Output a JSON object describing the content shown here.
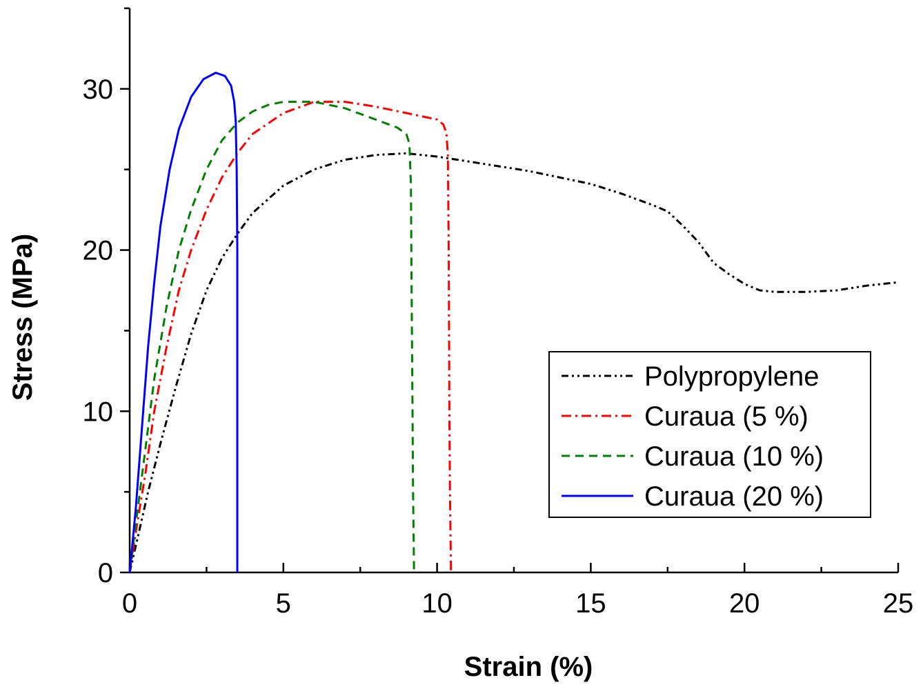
{
  "chart_data": {
    "type": "line",
    "title": "",
    "xlabel": "Strain (%)",
    "ylabel": "Stress (MPa)",
    "xlim": [
      0,
      25
    ],
    "ylim": [
      0,
      35
    ],
    "x_ticks": [
      "0",
      "5",
      "10",
      "15",
      "20",
      "25"
    ],
    "y_ticks": [
      "0",
      "10",
      "20",
      "30"
    ],
    "grid": false,
    "legend_position": "center-right",
    "series": [
      {
        "name": "Polypropylene",
        "color": "#000000",
        "dash": "dash-dot-dot",
        "points": [
          [
            0,
            0
          ],
          [
            0.3,
            2.5
          ],
          [
            0.6,
            5
          ],
          [
            1,
            8
          ],
          [
            1.5,
            11.5
          ],
          [
            2,
            14.8
          ],
          [
            2.5,
            17.5
          ],
          [
            3,
            19.5
          ],
          [
            3.5,
            21
          ],
          [
            4,
            22.3
          ],
          [
            5,
            24
          ],
          [
            6,
            25
          ],
          [
            7,
            25.6
          ],
          [
            8,
            25.9
          ],
          [
            9,
            26
          ],
          [
            10,
            25.8
          ],
          [
            11,
            25.5
          ],
          [
            12,
            25.2
          ],
          [
            13,
            24.9
          ],
          [
            14,
            24.5
          ],
          [
            15,
            24.1
          ],
          [
            16,
            23.5
          ],
          [
            17,
            22.8
          ],
          [
            17.5,
            22.4
          ],
          [
            18,
            21.5
          ],
          [
            18.5,
            20.5
          ],
          [
            19,
            19.2
          ],
          [
            19.5,
            18.5
          ],
          [
            20,
            17.9
          ],
          [
            20.5,
            17.5
          ],
          [
            21,
            17.4
          ],
          [
            22,
            17.4
          ],
          [
            23,
            17.5
          ],
          [
            24,
            17.8
          ],
          [
            25,
            18
          ]
        ]
      },
      {
        "name": "Curaua (5 %)",
        "color": "#ff0000",
        "dash": "dash-dot",
        "points": [
          [
            0,
            0
          ],
          [
            0.2,
            2.5
          ],
          [
            0.5,
            6
          ],
          [
            0.8,
            10
          ],
          [
            1.2,
            14
          ],
          [
            1.6,
            17.5
          ],
          [
            2,
            20
          ],
          [
            2.5,
            22.5
          ],
          [
            3,
            24.5
          ],
          [
            3.5,
            26
          ],
          [
            4,
            27.2
          ],
          [
            5,
            28.5
          ],
          [
            6,
            29.2
          ],
          [
            7,
            29.2
          ],
          [
            8,
            28.9
          ],
          [
            9,
            28.5
          ],
          [
            10,
            28.1
          ],
          [
            10.2,
            27.8
          ],
          [
            10.3,
            27.3
          ],
          [
            10.35,
            26
          ],
          [
            10.38,
            20
          ],
          [
            10.4,
            10
          ],
          [
            10.42,
            5
          ],
          [
            10.45,
            0
          ]
        ]
      },
      {
        "name": "Curaua (10 %)",
        "color": "#008000",
        "dash": "dash",
        "points": [
          [
            0,
            0
          ],
          [
            0.2,
            3
          ],
          [
            0.5,
            7.5
          ],
          [
            0.8,
            12
          ],
          [
            1.2,
            16.5
          ],
          [
            1.6,
            20
          ],
          [
            2,
            22.5
          ],
          [
            2.5,
            25
          ],
          [
            3,
            26.8
          ],
          [
            3.5,
            27.9
          ],
          [
            4,
            28.6
          ],
          [
            4.5,
            29
          ],
          [
            5,
            29.2
          ],
          [
            6,
            29.2
          ],
          [
            7,
            28.8
          ],
          [
            8,
            28.1
          ],
          [
            8.7,
            27.6
          ],
          [
            9,
            27.2
          ],
          [
            9.1,
            26.6
          ],
          [
            9.15,
            24
          ],
          [
            9.17,
            18
          ],
          [
            9.2,
            10
          ],
          [
            9.22,
            5
          ],
          [
            9.25,
            0
          ]
        ]
      },
      {
        "name": "Curaua (20 %)",
        "color": "#0000ff",
        "dash": "solid",
        "points": [
          [
            0,
            0
          ],
          [
            0.2,
            4
          ],
          [
            0.4,
            9
          ],
          [
            0.6,
            14
          ],
          [
            0.8,
            18
          ],
          [
            1,
            21.5
          ],
          [
            1.3,
            25
          ],
          [
            1.6,
            27.5
          ],
          [
            2,
            29.5
          ],
          [
            2.4,
            30.6
          ],
          [
            2.8,
            31
          ],
          [
            3.1,
            30.8
          ],
          [
            3.3,
            30.2
          ],
          [
            3.4,
            29.2
          ],
          [
            3.45,
            28
          ],
          [
            3.48,
            25
          ],
          [
            3.5,
            20
          ],
          [
            3.5,
            10
          ],
          [
            3.5,
            0
          ]
        ]
      }
    ]
  }
}
